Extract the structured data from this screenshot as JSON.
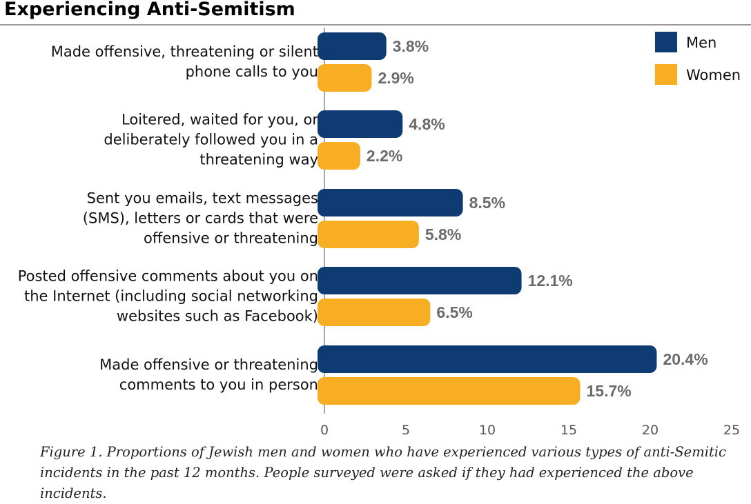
{
  "page_title": "Experiencing Anti-Semitism",
  "caption": "Figure 1. Proportions of Jewish men and women who have experienced various types of anti-Semitic incidents in the past 12 months. People surveyed were asked if they had experienced the above incidents.",
  "chart_data": {
    "type": "bar",
    "orientation": "horizontal",
    "categories": [
      [
        "Made offensive, threatening or silent",
        "phone calls to you"
      ],
      [
        "Loitered, waited for you, or",
        "deliberately followed you in a",
        "threatening way"
      ],
      [
        "Sent you emails, text messages",
        "(SMS), letters or cards that were",
        "offensive or threatening"
      ],
      [
        "Posted offensive comments about you on",
        "the Internet (including social networking",
        "websites such as Facebook)"
      ],
      [
        "Made offensive or threatening",
        "comments to you in person"
      ]
    ],
    "series": [
      {
        "name": "Men",
        "color": "#0d3b72",
        "values": [
          3.8,
          4.8,
          8.5,
          12.1,
          20.4
        ],
        "labels": [
          "3.8%",
          "4.8%",
          "8.5%",
          "12.1%",
          "20.4%"
        ]
      },
      {
        "name": "Women",
        "color": "#f8ae22",
        "values": [
          2.9,
          2.2,
          5.8,
          6.5,
          15.7
        ],
        "labels": [
          "2.9%",
          "2.2%",
          "5.8%",
          "6.5%",
          "15.7%"
        ]
      }
    ],
    "xlim": [
      0,
      25
    ],
    "xticks": [
      0,
      5,
      10,
      15,
      20,
      25
    ],
    "legend_position": "top-right",
    "grid": false
  }
}
